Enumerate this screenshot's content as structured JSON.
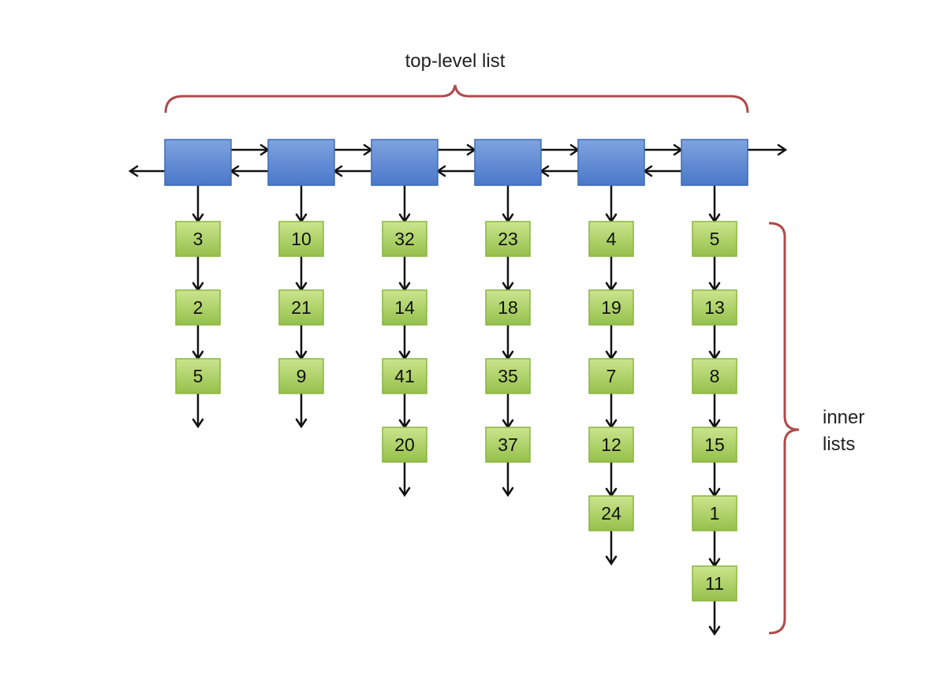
{
  "labels": {
    "top": "top-level list",
    "inner_line1": "inner",
    "inner_line2": "lists"
  },
  "colors": {
    "background": "#ffffff",
    "bracket": "#b04a4a",
    "arrow": "#111111",
    "outer_top": "#7fa3df",
    "outer_bottom": "#4a78c9",
    "outer_border": "#3f6bb6",
    "inner_top": "#cbe58e",
    "inner_bottom": "#95c04a",
    "inner_border": "#8ab53e"
  },
  "inner_lists": [
    [
      "3",
      "2",
      "5"
    ],
    [
      "10",
      "21",
      "9"
    ],
    [
      "32",
      "14",
      "41",
      "20"
    ],
    [
      "23",
      "18",
      "35",
      "37"
    ],
    [
      "4",
      "19",
      "7",
      "12",
      "24"
    ],
    [
      "5",
      "13",
      "8",
      "15",
      "1",
      "11"
    ]
  ]
}
